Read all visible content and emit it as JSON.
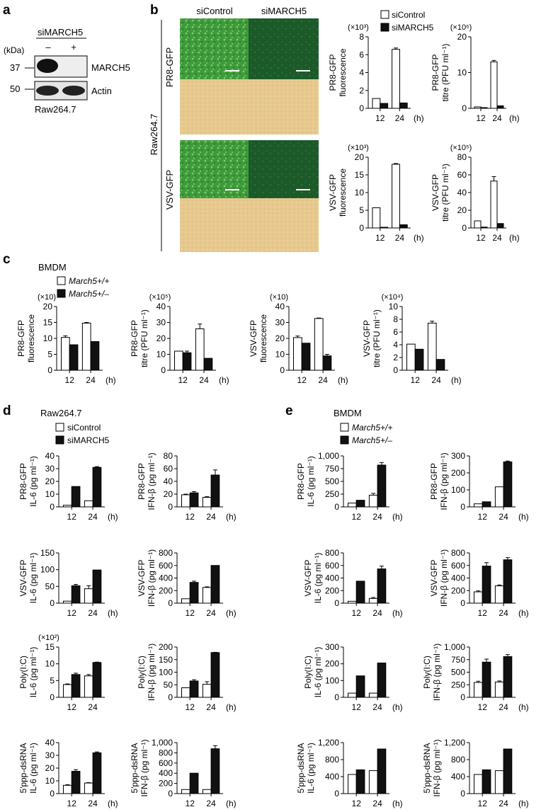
{
  "panels": {
    "a": "a",
    "b": "b",
    "c": "c",
    "d": "d",
    "e": "e"
  },
  "western": {
    "header": "siMARCH5",
    "lane_marks": [
      "–",
      "+"
    ],
    "kda_label": "(kDa)",
    "markers": [
      "37",
      "50"
    ],
    "bands": [
      "MARCH5",
      "Actin"
    ],
    "cell_line": "Raw264.7"
  },
  "micro": {
    "col_labels": [
      "siControl",
      "siMARCH5"
    ],
    "row_labels": [
      "PR8-GFP",
      "VSV-GFP"
    ],
    "side_label": "Raw264.7",
    "colors": {
      "gfp_control": "#3f9a3b",
      "gfp_march5": "#1c5a2a",
      "brightfield": "#e7c98f"
    }
  },
  "groups": {
    "b_legend": [
      "siControl",
      "siMARCH5"
    ],
    "c_title": "BMDM",
    "c_legend": [
      "March5+/+",
      "March5+/–"
    ],
    "d_title": "Raw264.7",
    "d_legend": [
      "siControl",
      "siMARCH5"
    ],
    "e_title": "BMDM",
    "e_legend": [
      "March5+/+",
      "March5+/–"
    ]
  },
  "chart_data": [
    {
      "id": "b1",
      "type": "bar",
      "categories": [
        "12",
        "24"
      ],
      "xunit": "(h)",
      "multiplier": "(×10³)",
      "ylabel": [
        "PR8-GFP",
        "fluorescence"
      ],
      "ylim": [
        0,
        8
      ],
      "yticks": [
        "0",
        "2",
        "4",
        "6",
        "8"
      ],
      "series": [
        {
          "name": "siControl",
          "values": [
            1.1,
            6.6
          ],
          "err": [
            0,
            0.15
          ]
        },
        {
          "name": "siMARCH5",
          "values": [
            0.55,
            0.6
          ],
          "err": [
            0,
            0
          ]
        }
      ]
    },
    {
      "id": "b2",
      "type": "bar",
      "categories": [
        "12",
        "24"
      ],
      "xunit": "(h)",
      "multiplier": "(×10⁶)",
      "ylabel": [
        "PR8-GFP",
        "titre (PFU ml⁻¹)"
      ],
      "ylim": [
        0,
        20
      ],
      "yticks": [
        "0",
        "10",
        "20"
      ],
      "series": [
        {
          "name": "siControl",
          "values": [
            0.4,
            13
          ],
          "err": [
            0,
            0.4
          ]
        },
        {
          "name": "siMARCH5",
          "values": [
            0.2,
            0.7
          ],
          "err": [
            0,
            0
          ]
        }
      ]
    },
    {
      "id": "b3",
      "type": "bar",
      "categories": [
        "12",
        "24"
      ],
      "xunit": "(h)",
      "multiplier": "(×10³)",
      "ylabel": [
        "VSV-GFP",
        "fluorescence"
      ],
      "ylim": [
        0,
        20
      ],
      "yticks": [
        "0",
        "5",
        "10",
        "15",
        "20"
      ],
      "series": [
        {
          "name": "siControl",
          "values": [
            5.7,
            18
          ],
          "err": [
            0,
            0.2
          ]
        },
        {
          "name": "siMARCH5",
          "values": [
            0.2,
            0.9
          ],
          "err": [
            0,
            0
          ]
        }
      ]
    },
    {
      "id": "b4",
      "type": "bar",
      "categories": [
        "12",
        "24"
      ],
      "xunit": "(h)",
      "multiplier": "(×10⁵)",
      "ylabel": [
        "VSV-GFP",
        "titre (PFU ml⁻¹)"
      ],
      "ylim": [
        0,
        80
      ],
      "yticks": [
        "0",
        "20",
        "40",
        "60",
        "80"
      ],
      "series": [
        {
          "name": "siControl",
          "values": [
            8,
            53
          ],
          "err": [
            0,
            5
          ]
        },
        {
          "name": "siMARCH5",
          "values": [
            1,
            5
          ],
          "err": [
            0,
            0
          ]
        }
      ]
    },
    {
      "id": "c1",
      "type": "bar",
      "categories": [
        "12",
        "24"
      ],
      "xunit": "(h)",
      "multiplier": "(×10)",
      "ylabel": [
        "PR8-GFP",
        "fluorescence"
      ],
      "ylim": [
        0,
        20
      ],
      "yticks": [
        "0",
        "5",
        "10",
        "15",
        "20"
      ],
      "series": [
        {
          "name": "March5+/+",
          "values": [
            10.3,
            14.8
          ],
          "err": [
            0.5,
            0.2
          ]
        },
        {
          "name": "March5+/–",
          "values": [
            8,
            9
          ],
          "err": [
            0,
            0
          ]
        }
      ]
    },
    {
      "id": "c2",
      "type": "bar",
      "categories": [
        "12",
        "24"
      ],
      "xunit": "(h)",
      "multiplier": "(×10⁵)",
      "ylabel": [
        "PR8-GFP",
        "titre (PFU ml⁻¹)"
      ],
      "ylim": [
        0,
        40
      ],
      "yticks": [
        "0",
        "10",
        "20",
        "30",
        "40"
      ],
      "series": [
        {
          "name": "March5+/+",
          "values": [
            12,
            26
          ],
          "err": [
            0,
            3
          ]
        },
        {
          "name": "March5+/–",
          "values": [
            11,
            7.5
          ],
          "err": [
            1,
            0
          ]
        }
      ]
    },
    {
      "id": "c3",
      "type": "bar",
      "categories": [
        "12",
        "24"
      ],
      "xunit": "(h)",
      "multiplier": "(×10)",
      "ylabel": [
        "VSV-GFP",
        "fluorescence"
      ],
      "ylim": [
        0,
        40
      ],
      "yticks": [
        "0",
        "10",
        "20",
        "30",
        "40"
      ],
      "series": [
        {
          "name": "March5+/+",
          "values": [
            20.5,
            32.5
          ],
          "err": [
            1,
            0.3
          ]
        },
        {
          "name": "March5+/–",
          "values": [
            17,
            9
          ],
          "err": [
            0,
            1
          ]
        }
      ]
    },
    {
      "id": "c4",
      "type": "bar",
      "categories": [
        "12",
        "24"
      ],
      "xunit": "(h)",
      "multiplier": "(×10⁴)",
      "ylabel": [
        "VSV-GFP",
        "titre (PFU ml⁻¹)"
      ],
      "ylim": [
        0,
        10
      ],
      "yticks": [
        "0",
        "2",
        "4",
        "6",
        "8",
        "10"
      ],
      "series": [
        {
          "name": "March5+/+",
          "values": [
            4.1,
            7.4
          ],
          "err": [
            0,
            0.3
          ]
        },
        {
          "name": "March5+/–",
          "values": [
            3.3,
            1.7
          ],
          "err": [
            0,
            0
          ]
        }
      ]
    },
    {
      "id": "d1",
      "type": "bar",
      "categories": [
        "12",
        "24"
      ],
      "xunit": "(h)",
      "ylabel": [
        "PR8-GFP",
        "IL-6 (pg ml⁻¹)"
      ],
      "ylim": [
        0,
        40
      ],
      "yticks": [
        "0",
        "10",
        "20",
        "30",
        "40"
      ],
      "series": [
        {
          "name": "siControl",
          "values": [
            1.3,
            4.8
          ],
          "err": [
            0,
            0
          ]
        },
        {
          "name": "siMARCH5",
          "values": [
            16,
            31
          ],
          "err": [
            0,
            0.6
          ]
        }
      ]
    },
    {
      "id": "d2",
      "type": "bar",
      "categories": [
        "12",
        "24"
      ],
      "xunit": "(h)",
      "ylabel": [
        "PR8-GFP",
        "IFN-β (pg ml⁻¹)"
      ],
      "ylim": [
        0,
        80
      ],
      "yticks": [
        "0",
        "20",
        "40",
        "60",
        "80"
      ],
      "series": [
        {
          "name": "siControl",
          "values": [
            19,
            15
          ],
          "err": [
            1,
            1
          ]
        },
        {
          "name": "siMARCH5",
          "values": [
            22,
            50
          ],
          "err": [
            2,
            8
          ]
        }
      ]
    },
    {
      "id": "d3",
      "type": "bar",
      "categories": [
        "12",
        "24"
      ],
      "xunit": "(h)",
      "ylabel": [
        "VSV-GFP",
        "IL-6 (pg ml⁻¹)"
      ],
      "ylim": [
        0,
        150
      ],
      "yticks": [
        "0",
        "50",
        "100",
        "150"
      ],
      "series": [
        {
          "name": "siControl",
          "values": [
            6,
            43
          ],
          "err": [
            0,
            9
          ]
        },
        {
          "name": "siMARCH5",
          "values": [
            52,
            99
          ],
          "err": [
            4,
            0
          ]
        }
      ]
    },
    {
      "id": "d4",
      "type": "bar",
      "categories": [
        "12",
        "24"
      ],
      "xunit": "(h)",
      "ylabel": [
        "VSV-GFP",
        "IFN-β (pg ml⁻¹)"
      ],
      "ylim": [
        0,
        800
      ],
      "yticks": [
        "0",
        "200",
        "400",
        "600",
        "800"
      ],
      "series": [
        {
          "name": "siControl",
          "values": [
            70,
            250
          ],
          "err": [
            0,
            10
          ]
        },
        {
          "name": "siMARCH5",
          "values": [
            330,
            600
          ],
          "err": [
            20,
            0
          ]
        }
      ]
    },
    {
      "id": "d5",
      "type": "bar",
      "categories": [
        "12",
        "24"
      ],
      "xunit": "",
      "multiplier": "(×10²)",
      "ylabel": [
        "Poly(I:C)",
        "IL-6 (pg ml⁻¹)"
      ],
      "ylim": [
        0,
        15
      ],
      "yticks": [
        "0",
        "5",
        "10",
        "15"
      ],
      "series": [
        {
          "name": "siControl",
          "values": [
            3.8,
            6.4
          ],
          "err": [
            0.2,
            0.4
          ]
        },
        {
          "name": "siMARCH5",
          "values": [
            6.8,
            10.4
          ],
          "err": [
            0.4,
            0.1
          ]
        }
      ]
    },
    {
      "id": "d6",
      "type": "bar",
      "categories": [
        "12",
        "24"
      ],
      "xunit": "(h)",
      "ylabel": [
        "Poly(I:C)",
        "IFN-β (pg ml⁻¹)"
      ],
      "ylim": [
        0,
        200
      ],
      "yticks": [
        "0",
        "50",
        "100",
        "150",
        "200"
      ],
      "series": [
        {
          "name": "siControl",
          "values": [
            38,
            52
          ],
          "err": [
            0,
            10
          ]
        },
        {
          "name": "siMARCH5",
          "values": [
            65,
            178
          ],
          "err": [
            5,
            1
          ]
        }
      ]
    },
    {
      "id": "d7",
      "type": "bar",
      "categories": [
        "12",
        "24"
      ],
      "xunit": "(h)",
      "ylabel": [
        "5′ppp-dsRNA",
        "IL-6 (pg ml⁻¹)"
      ],
      "ylim": [
        0,
        40
      ],
      "yticks": [
        "0",
        "10",
        "20",
        "30",
        "40"
      ],
      "series": [
        {
          "name": "siControl",
          "values": [
            6.5,
            8.3
          ],
          "err": [
            0.5,
            0.3
          ]
        },
        {
          "name": "siMARCH5",
          "values": [
            17.5,
            32
          ],
          "err": [
            1.3,
            0.7
          ]
        }
      ]
    },
    {
      "id": "d8",
      "type": "bar",
      "categories": [
        "12",
        "24"
      ],
      "xunit": "(h)",
      "ylabel": [
        "5′ppp-dsRNA",
        "IFN-β (pg ml⁻¹)"
      ],
      "ylim": [
        0,
        1000
      ],
      "yticks": [
        "0",
        "200",
        "400",
        "600",
        "800",
        "1,000"
      ],
      "series": [
        {
          "name": "siControl",
          "values": [
            80,
            80
          ],
          "err": [
            0,
            0
          ]
        },
        {
          "name": "siMARCH5",
          "values": [
            400,
            880
          ],
          "err": [
            0,
            60
          ]
        }
      ]
    },
    {
      "id": "e1",
      "type": "bar",
      "categories": [
        "12",
        "24"
      ],
      "xunit": "(h)",
      "ylabel": [
        "PR8-GFP",
        "IL-6 (pg ml⁻¹)"
      ],
      "ylim": [
        0,
        1000
      ],
      "yticks": [
        "0",
        "250",
        "500",
        "750",
        "1,000"
      ],
      "series": [
        {
          "name": "March5+/+",
          "values": [
            75,
            230
          ],
          "err": [
            0,
            35
          ]
        },
        {
          "name": "March5+/–",
          "values": [
            130,
            820
          ],
          "err": [
            0,
            50
          ]
        }
      ]
    },
    {
      "id": "e2",
      "type": "bar",
      "categories": [
        "12",
        "24"
      ],
      "xunit": "(h)",
      "ylabel": [
        "PR8-GFP",
        "IFN-β (pg ml⁻¹)"
      ],
      "ylim": [
        0,
        300
      ],
      "yticks": [
        "0",
        "100",
        "200",
        "300"
      ],
      "series": [
        {
          "name": "March5+/+",
          "values": [
            18,
            118
          ],
          "err": [
            0,
            0
          ]
        },
        {
          "name": "March5+/–",
          "values": [
            30,
            265
          ],
          "err": [
            0,
            5
          ]
        }
      ]
    },
    {
      "id": "e3",
      "type": "bar",
      "categories": [
        "12",
        "24"
      ],
      "xunit": "(h)",
      "ylabel": [
        "VSV-GFP",
        "IL-6 (pg ml⁻¹)"
      ],
      "ylim": [
        0,
        800
      ],
      "yticks": [
        "0",
        "200",
        "400",
        "600",
        "800"
      ],
      "series": [
        {
          "name": "March5+/+",
          "values": [
            30,
            75
          ],
          "err": [
            0,
            15
          ]
        },
        {
          "name": "March5+/–",
          "values": [
            350,
            545
          ],
          "err": [
            0,
            45
          ]
        }
      ]
    },
    {
      "id": "e4",
      "type": "bar",
      "categories": [
        "12",
        "24"
      ],
      "xunit": "(h)",
      "ylabel": [
        "VSV-GFP",
        "IFN-β (pg ml⁻¹)"
      ],
      "ylim": [
        0,
        800
      ],
      "yticks": [
        "0",
        "200",
        "400",
        "600",
        "800"
      ],
      "series": [
        {
          "name": "March5+/+",
          "values": [
            180,
            275
          ],
          "err": [
            15,
            15
          ]
        },
        {
          "name": "March5+/–",
          "values": [
            590,
            690
          ],
          "err": [
            55,
            35
          ]
        }
      ]
    },
    {
      "id": "e5",
      "type": "bar",
      "categories": [
        "12",
        "24"
      ],
      "xunit": "(h)",
      "ylabel": [
        "Poly(I:C)",
        "IL-6 (pg ml⁻¹)"
      ],
      "ylim": [
        0,
        300
      ],
      "yticks": [
        "0",
        "100",
        "200",
        "300"
      ],
      "series": [
        {
          "name": "March5+/+",
          "values": [
            25,
            25
          ],
          "err": [
            0,
            0
          ]
        },
        {
          "name": "March5+/–",
          "values": [
            128,
            205
          ],
          "err": [
            0,
            0
          ]
        }
      ]
    },
    {
      "id": "e6",
      "type": "bar",
      "categories": [
        "12",
        "24"
      ],
      "xunit": "(h)",
      "ylabel": [
        "Poly(I:C)",
        "IFN-β (pg ml⁻¹)"
      ],
      "ylim": [
        0,
        1000
      ],
      "yticks": [
        "0",
        "250",
        "500",
        "750",
        "1,000"
      ],
      "series": [
        {
          "name": "March5+/+",
          "values": [
            295,
            305
          ],
          "err": [
            25,
            20
          ]
        },
        {
          "name": "March5+/–",
          "values": [
            700,
            810
          ],
          "err": [
            60,
            40
          ]
        }
      ]
    },
    {
      "id": "e7",
      "type": "bar",
      "categories": [
        "12",
        "24"
      ],
      "xunit": "(h)",
      "ylabel": [
        "5′ppp-dsRNA",
        "IL-6 (pg ml⁻¹)"
      ],
      "ylim": [
        0,
        1200
      ],
      "yticks": [
        "0",
        "400",
        "800",
        "1,200"
      ],
      "series": [
        {
          "name": "March5+/+",
          "values": [
            450,
            540
          ],
          "err": [
            0,
            0
          ]
        },
        {
          "name": "March5+/–",
          "values": [
            560,
            1050
          ],
          "err": [
            0,
            0
          ]
        }
      ]
    },
    {
      "id": "e8",
      "type": "bar",
      "categories": [
        "12",
        "24"
      ],
      "xunit": "(h)",
      "ylabel": [
        "5′ppp-dsRNA",
        "IFN-β (pg ml⁻¹)"
      ],
      "ylim": [
        0,
        1200
      ],
      "yticks": [
        "0",
        "400",
        "800",
        "1,200"
      ],
      "series": [
        {
          "name": "March5+/+",
          "values": [
            450,
            540
          ],
          "err": [
            0,
            0
          ]
        },
        {
          "name": "March5+/–",
          "values": [
            560,
            1050
          ],
          "err": [
            0,
            0
          ]
        }
      ]
    }
  ]
}
